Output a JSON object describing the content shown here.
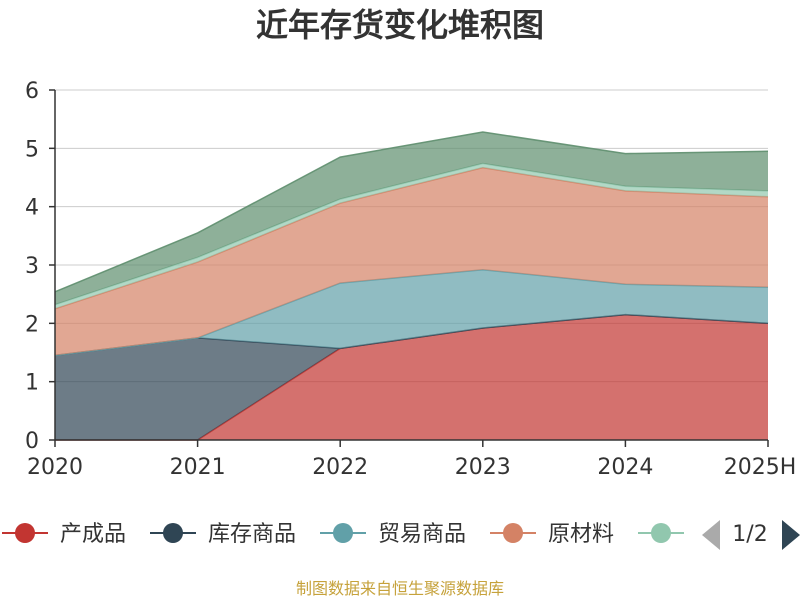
{
  "source_note": "制图数据来自恒生聚源数据库",
  "legend_pager": {
    "label": "1/2"
  },
  "chart_data": {
    "type": "area",
    "stacked": true,
    "title": "近年存货变化堆积图",
    "ylabel": "",
    "categories": [
      "2020",
      "2021",
      "2022",
      "2023",
      "2024",
      "2025H"
    ],
    "ylim": [
      0,
      6
    ],
    "yticks": [
      "0",
      "1",
      "2",
      "3",
      "4",
      "5",
      "6"
    ],
    "grid": true,
    "legend_position": "bottom",
    "series": [
      {
        "name": "产成品",
        "color": "#c23531",
        "values": [
          0,
          0,
          1.57,
          1.92,
          2.15,
          2.0
        ]
      },
      {
        "name": "库存商品",
        "color": "#2f4554",
        "values": [
          1.45,
          1.75,
          0,
          0,
          0,
          0
        ]
      },
      {
        "name": "贸易商品",
        "color": "#61a0a8",
        "values": [
          0,
          0,
          1.12,
          1.0,
          0.52,
          0.62
        ]
      },
      {
        "name": "原材料",
        "color": "#d48265",
        "values": [
          0.8,
          1.3,
          1.37,
          1.75,
          1.6,
          1.55
        ]
      },
      {
        "name": "",
        "color": "#91c7ae",
        "values": [
          0.07,
          0.08,
          0.07,
          0.07,
          0.08,
          0.1
        ]
      },
      {
        "name": "",
        "color": "#5e8e6e",
        "values": [
          0.22,
          0.42,
          0.72,
          0.54,
          0.56,
          0.68
        ]
      }
    ],
    "legend_visible_count": 5
  }
}
